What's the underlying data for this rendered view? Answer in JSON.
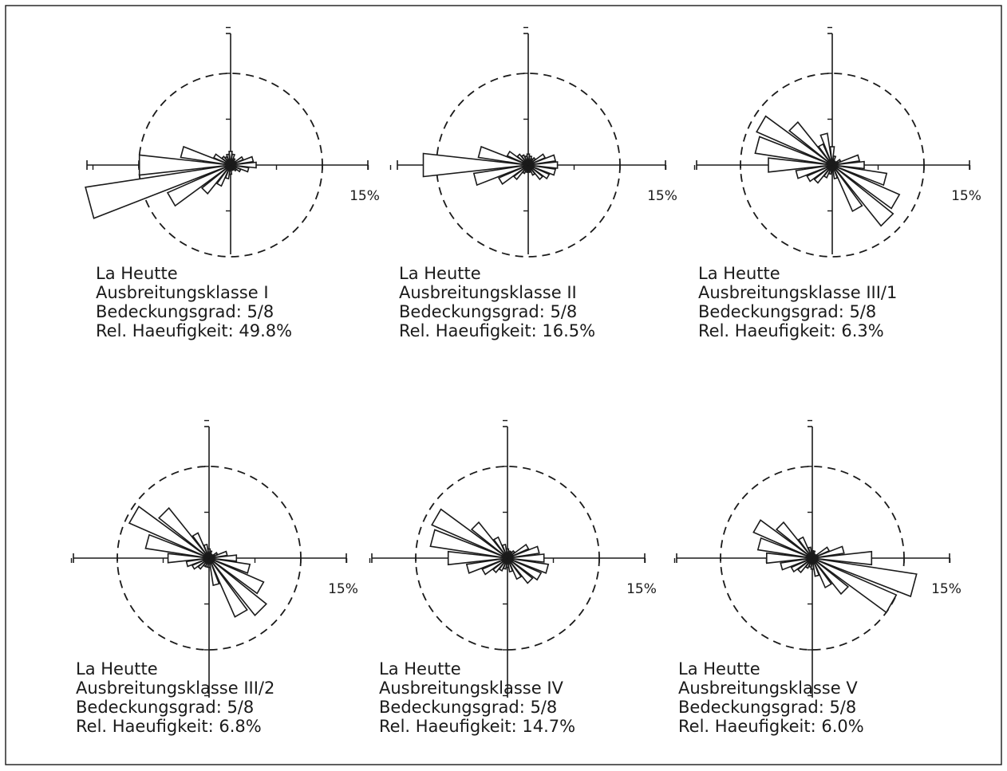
{
  "style": {
    "ink": "#1a1a1a",
    "paper": "#ffffff"
  },
  "chart_data": [
    {
      "type": "wind-rose",
      "scale_label": "15%",
      "axis_max_percent": 15,
      "dashed_circle_percent": 10,
      "sectors_percent": [
        1.5,
        1.2,
        0.8,
        0.6,
        1.5,
        2.5,
        2.8,
        2.0,
        1.2,
        0.8,
        0.6,
        0.6,
        1.0,
        1.5,
        2.5,
        4.0,
        7.5,
        16.0,
        10.0,
        5.5,
        2.0,
        1.2,
        1.0,
        1.2
      ],
      "text": [
        "La Heutte",
        "Ausbreitungsklasse I",
        "Bedeckungsgrad: 5/8",
        "Rel. Haeufigkeit: 49.8%"
      ]
    },
    {
      "type": "wind-rose",
      "scale_label": "15%",
      "axis_max_percent": 15,
      "dashed_circle_percent": 10,
      "sectors_percent": [
        1.2,
        1.0,
        0.8,
        1.0,
        2.0,
        3.0,
        3.2,
        3.0,
        2.5,
        2.0,
        1.2,
        0.8,
        0.6,
        0.8,
        1.0,
        2.0,
        3.5,
        6.0,
        11.5,
        5.5,
        2.5,
        1.5,
        1.2,
        1.0
      ],
      "text": [
        "La Heutte",
        "Ausbreitungsklasse II",
        "Bedeckungsgrad: 5/8",
        "Rel. Haeufigkeit: 16.5%"
      ]
    },
    {
      "type": "wind-rose",
      "scale_label": "15%",
      "axis_max_percent": 15,
      "dashed_circle_percent": 10,
      "sectors_percent": [
        2.0,
        1.0,
        0.5,
        0.5,
        1.0,
        3.0,
        3.5,
        6.0,
        8.0,
        8.5,
        5.5,
        1.5,
        0.5,
        1.0,
        1.5,
        2.5,
        3.0,
        4.0,
        7.0,
        8.5,
        9.0,
        6.0,
        2.5,
        3.5
      ],
      "text": [
        "La Heutte",
        "Ausbreitungsklasse III/1",
        "Bedeckungsgrad: 5/8",
        "Rel. Haeufigkeit: 6.3%"
      ]
    },
    {
      "type": "wind-rose",
      "scale_label": "15%",
      "axis_max_percent": 15,
      "dashed_circle_percent": 10,
      "sectors_percent": [
        1.0,
        0.8,
        0.5,
        0.5,
        1.0,
        2.0,
        3.0,
        4.5,
        6.5,
        8.0,
        7.0,
        3.0,
        1.0,
        1.0,
        1.0,
        1.5,
        2.0,
        2.5,
        4.5,
        7.0,
        9.5,
        7.0,
        3.0,
        1.5
      ],
      "text": [
        "La Heutte",
        "Ausbreitungsklasse III/2",
        "Bedeckungsgrad: 5/8",
        "Rel. Haeufigkeit: 6.8%"
      ]
    },
    {
      "type": "wind-rose",
      "scale_label": "15%",
      "axis_max_percent": 15,
      "dashed_circle_percent": 10,
      "sectors_percent": [
        1.0,
        0.8,
        0.8,
        1.0,
        2.5,
        3.5,
        4.0,
        4.5,
        4.0,
        3.5,
        2.5,
        1.5,
        1.0,
        1.2,
        1.5,
        2.0,
        3.0,
        4.5,
        6.5,
        8.5,
        9.0,
        5.0,
        2.5,
        1.5
      ],
      "text": [
        "La Heutte",
        "Ausbreitungsklasse IV",
        "Bedeckungsgrad: 5/8",
        "Rel. Haeufigkeit: 14.7%"
      ]
    },
    {
      "type": "wind-rose",
      "scale_label": "15%",
      "axis_max_percent": 15,
      "dashed_circle_percent": 10,
      "sectors_percent": [
        0.8,
        0.8,
        0.5,
        0.5,
        2.0,
        3.5,
        6.5,
        11.5,
        10.0,
        5.0,
        3.5,
        2.0,
        1.2,
        1.0,
        1.2,
        2.0,
        2.5,
        3.5,
        5.0,
        6.0,
        7.0,
        5.0,
        2.5,
        1.2
      ],
      "text": [
        "La Heutte",
        "Ausbreitungsklasse V",
        "Bedeckungsgrad: 5/8",
        "Rel. Haeufigkeit: 6.0%"
      ]
    }
  ]
}
